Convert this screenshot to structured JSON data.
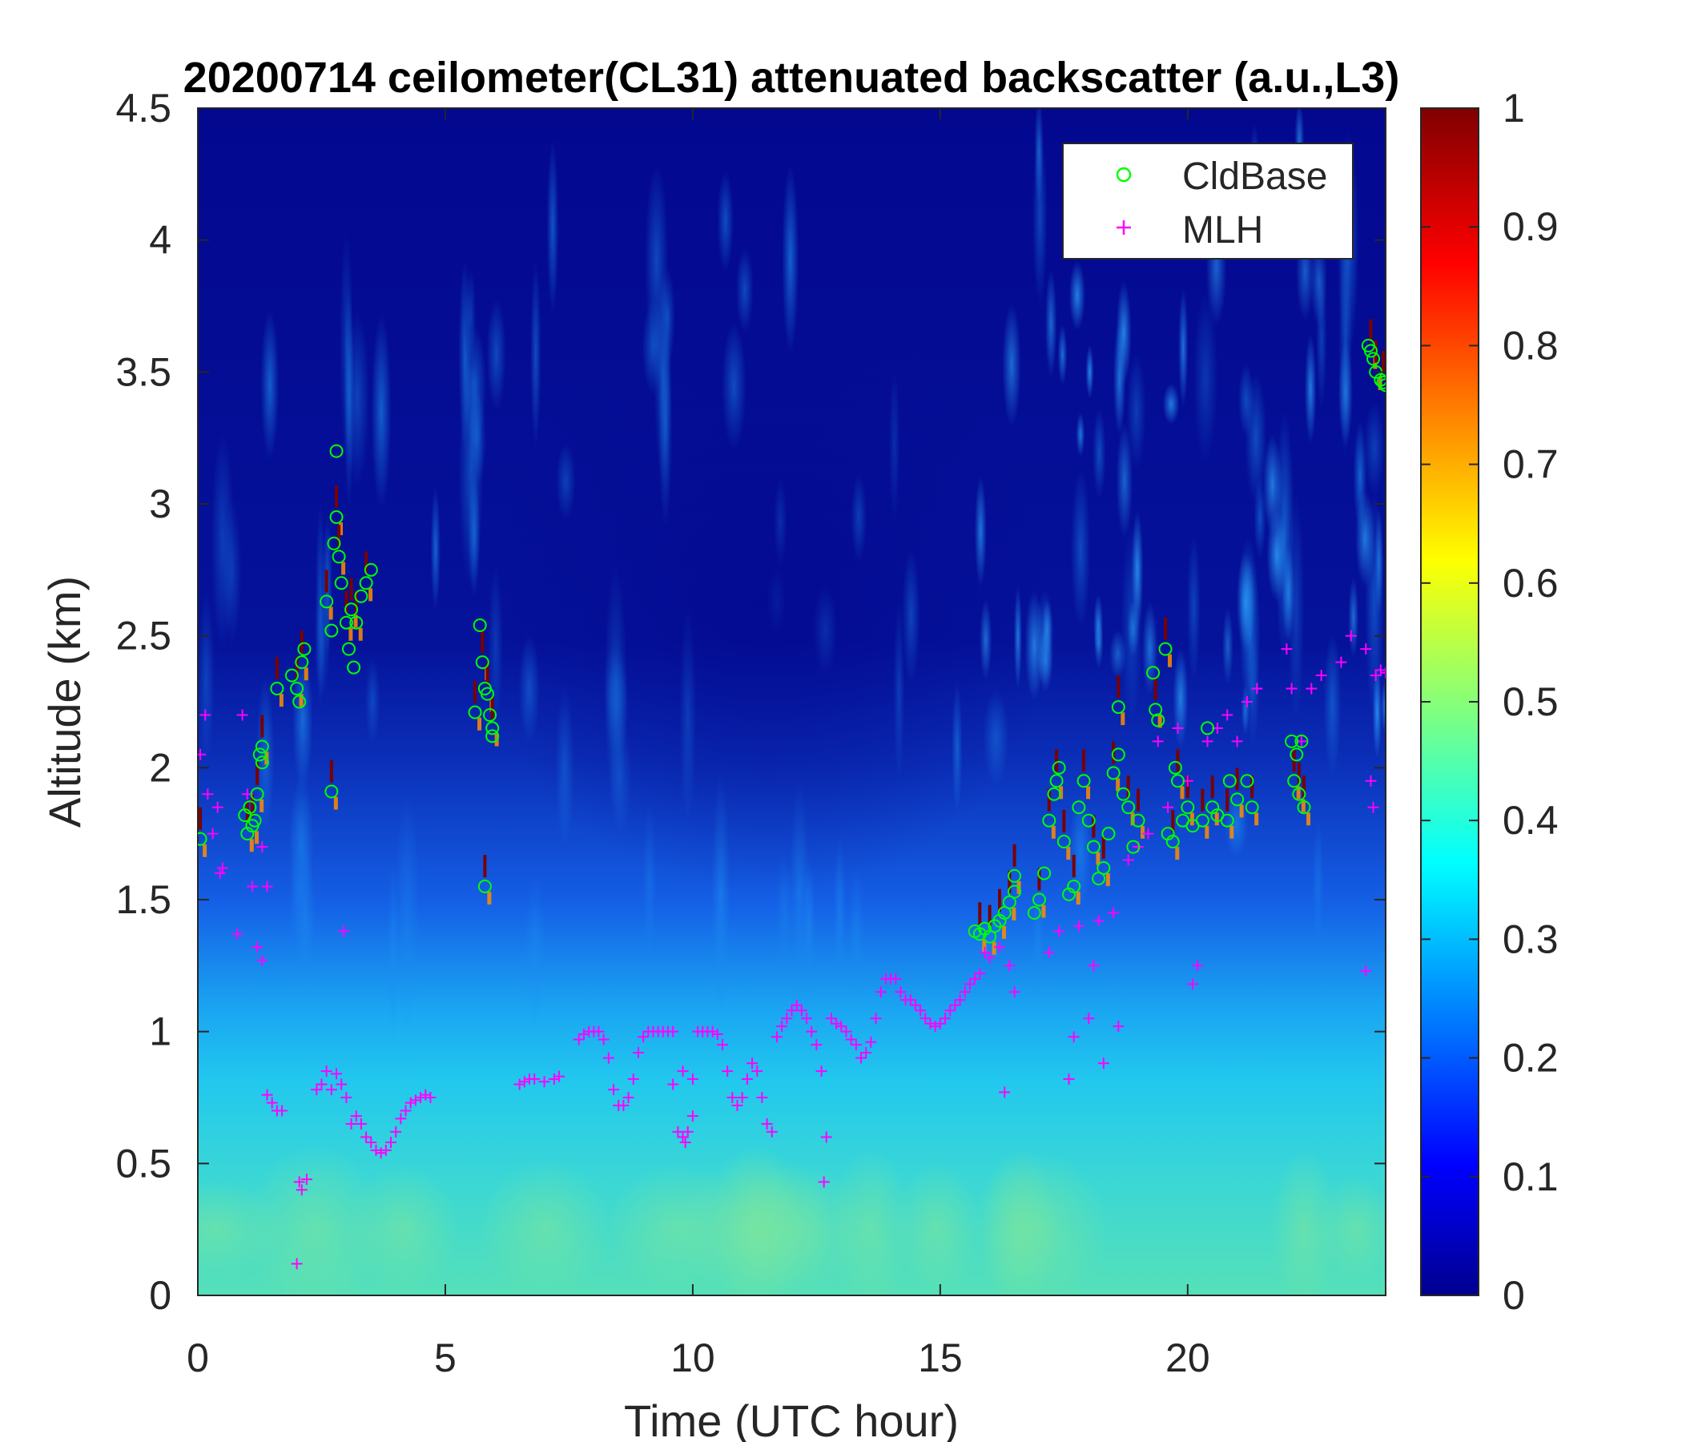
{
  "chart_data": {
    "type": "heatmap",
    "title": "20200714 ceilometer(CL31) attenuated backscatter (a.u.,L3)",
    "xlabel": "Time (UTC hour)",
    "ylabel": "Altitude (km)",
    "xlim": [
      0,
      24
    ],
    "ylim": [
      0,
      4.5
    ],
    "x_ticks": [
      "0",
      "5",
      "10",
      "15",
      "20"
    ],
    "x_tick_values": [
      0,
      5,
      10,
      15,
      20
    ],
    "y_ticks": [
      "0",
      "0.5",
      "1",
      "1.5",
      "2",
      "2.5",
      "3",
      "3.5",
      "4",
      "4.5"
    ],
    "y_tick_values": [
      0,
      0.5,
      1,
      1.5,
      2,
      2.5,
      3,
      3.5,
      4,
      4.5
    ],
    "colorbar": {
      "range": [
        0,
        1
      ],
      "ticks": [
        "0",
        "0.1",
        "0.2",
        "0.3",
        "0.4",
        "0.5",
        "0.6",
        "0.7",
        "0.8",
        "0.9",
        "1"
      ],
      "tick_values": [
        0,
        0.1,
        0.2,
        0.3,
        0.4,
        0.5,
        0.6,
        0.7,
        0.8,
        0.9,
        1.0
      ],
      "colormap": "jet"
    },
    "legend": {
      "placement": "top-right",
      "entries": [
        {
          "label": "CldBase",
          "marker": "circle",
          "color": "#00ff00"
        },
        {
          "label": "MLH",
          "marker": "plus",
          "color": "#ff00ff"
        }
      ]
    },
    "series": [
      {
        "name": "CldBase",
        "marker": "circle",
        "color": "#00ff00",
        "points": [
          [
            0.05,
            1.73
          ],
          [
            0.95,
            1.82
          ],
          [
            1.0,
            1.75
          ],
          [
            1.05,
            1.85
          ],
          [
            1.1,
            1.78
          ],
          [
            1.15,
            1.8
          ],
          [
            1.2,
            1.9
          ],
          [
            1.25,
            2.05
          ],
          [
            1.3,
            2.08
          ],
          [
            1.3,
            2.02
          ],
          [
            1.6,
            2.3
          ],
          [
            1.9,
            2.35
          ],
          [
            2.0,
            2.3
          ],
          [
            2.05,
            2.25
          ],
          [
            2.1,
            2.4
          ],
          [
            2.15,
            2.45
          ],
          [
            2.6,
            2.63
          ],
          [
            2.7,
            2.52
          ],
          [
            2.7,
            1.91
          ],
          [
            2.75,
            2.85
          ],
          [
            2.8,
            2.95
          ],
          [
            2.8,
            3.2
          ],
          [
            2.85,
            2.8
          ],
          [
            2.9,
            2.7
          ],
          [
            3.0,
            2.55
          ],
          [
            3.05,
            2.45
          ],
          [
            3.1,
            2.6
          ],
          [
            3.15,
            2.38
          ],
          [
            3.2,
            2.55
          ],
          [
            3.3,
            2.65
          ],
          [
            3.4,
            2.7
          ],
          [
            3.5,
            2.75
          ],
          [
            5.6,
            2.21
          ],
          [
            5.7,
            2.54
          ],
          [
            5.75,
            2.4
          ],
          [
            5.8,
            2.3
          ],
          [
            5.85,
            2.28
          ],
          [
            5.9,
            2.2
          ],
          [
            5.95,
            2.15
          ],
          [
            5.95,
            2.12
          ],
          [
            5.8,
            1.55
          ],
          [
            15.7,
            1.38
          ],
          [
            15.8,
            1.37
          ],
          [
            15.9,
            1.39
          ],
          [
            16.0,
            1.36
          ],
          [
            16.1,
            1.4
          ],
          [
            16.2,
            1.42
          ],
          [
            16.3,
            1.45
          ],
          [
            16.4,
            1.49
          ],
          [
            16.5,
            1.53
          ],
          [
            16.5,
            1.59
          ],
          [
            16.9,
            1.45
          ],
          [
            17.0,
            1.5
          ],
          [
            17.1,
            1.6
          ],
          [
            17.2,
            1.8
          ],
          [
            17.3,
            1.9
          ],
          [
            17.35,
            1.95
          ],
          [
            17.4,
            2.0
          ],
          [
            17.5,
            1.72
          ],
          [
            17.6,
            1.52
          ],
          [
            17.7,
            1.55
          ],
          [
            17.8,
            1.85
          ],
          [
            17.9,
            1.95
          ],
          [
            18.0,
            1.8
          ],
          [
            18.1,
            1.7
          ],
          [
            18.2,
            1.58
          ],
          [
            18.3,
            1.62
          ],
          [
            18.4,
            1.75
          ],
          [
            18.5,
            1.98
          ],
          [
            18.6,
            2.05
          ],
          [
            18.6,
            2.23
          ],
          [
            18.7,
            1.9
          ],
          [
            18.8,
            1.85
          ],
          [
            18.9,
            1.7
          ],
          [
            19.0,
            1.8
          ],
          [
            19.3,
            2.36
          ],
          [
            19.35,
            2.22
          ],
          [
            19.4,
            2.18
          ],
          [
            19.55,
            2.45
          ],
          [
            19.6,
            1.75
          ],
          [
            19.7,
            1.72
          ],
          [
            19.75,
            2.0
          ],
          [
            19.8,
            1.95
          ],
          [
            19.9,
            1.8
          ],
          [
            20.0,
            1.85
          ],
          [
            20.1,
            1.78
          ],
          [
            20.3,
            1.8
          ],
          [
            20.4,
            2.15
          ],
          [
            20.5,
            1.85
          ],
          [
            20.6,
            1.82
          ],
          [
            20.8,
            1.8
          ],
          [
            20.85,
            1.95
          ],
          [
            21.0,
            1.88
          ],
          [
            21.2,
            1.95
          ],
          [
            21.3,
            1.85
          ],
          [
            22.1,
            2.1
          ],
          [
            22.15,
            1.95
          ],
          [
            22.2,
            2.05
          ],
          [
            22.25,
            1.9
          ],
          [
            22.3,
            2.1
          ],
          [
            22.35,
            1.85
          ],
          [
            23.65,
            3.6
          ],
          [
            23.7,
            3.58
          ],
          [
            23.75,
            3.55
          ],
          [
            23.8,
            3.5
          ],
          [
            23.9,
            3.47
          ],
          [
            23.95,
            3.46
          ],
          [
            24.0,
            3.45
          ]
        ]
      },
      {
        "name": "MLH",
        "marker": "plus",
        "color": "#ff00ff",
        "points": [
          [
            0.05,
            2.05
          ],
          [
            0.15,
            2.2
          ],
          [
            0.2,
            1.9
          ],
          [
            0.3,
            1.75
          ],
          [
            0.4,
            1.85
          ],
          [
            0.45,
            1.6
          ],
          [
            0.5,
            1.62
          ],
          [
            0.8,
            1.37
          ],
          [
            0.9,
            2.2
          ],
          [
            1.0,
            1.9
          ],
          [
            1.1,
            1.55
          ],
          [
            1.2,
            1.32
          ],
          [
            1.3,
            1.27
          ],
          [
            1.3,
            1.7
          ],
          [
            1.4,
            1.55
          ],
          [
            1.4,
            0.76
          ],
          [
            1.5,
            0.73
          ],
          [
            1.6,
            0.7
          ],
          [
            1.7,
            0.7
          ],
          [
            2.0,
            0.12
          ],
          [
            2.05,
            0.43
          ],
          [
            2.1,
            0.4
          ],
          [
            2.2,
            0.44
          ],
          [
            2.4,
            0.78
          ],
          [
            2.5,
            0.8
          ],
          [
            2.6,
            0.85
          ],
          [
            2.7,
            0.78
          ],
          [
            2.8,
            0.84
          ],
          [
            2.9,
            0.8
          ],
          [
            2.95,
            1.38
          ],
          [
            3.0,
            0.75
          ],
          [
            3.1,
            0.65
          ],
          [
            3.2,
            0.68
          ],
          [
            3.3,
            0.65
          ],
          [
            3.4,
            0.6
          ],
          [
            3.5,
            0.58
          ],
          [
            3.6,
            0.55
          ],
          [
            3.7,
            0.54
          ],
          [
            3.8,
            0.55
          ],
          [
            3.9,
            0.58
          ],
          [
            4.0,
            0.62
          ],
          [
            4.1,
            0.67
          ],
          [
            4.2,
            0.7
          ],
          [
            4.3,
            0.73
          ],
          [
            4.4,
            0.74
          ],
          [
            4.5,
            0.75
          ],
          [
            4.6,
            0.76
          ],
          [
            4.7,
            0.75
          ],
          [
            6.5,
            0.8
          ],
          [
            6.6,
            0.81
          ],
          [
            6.7,
            0.82
          ],
          [
            6.8,
            0.82
          ],
          [
            7.0,
            0.81
          ],
          [
            7.2,
            0.82
          ],
          [
            7.3,
            0.83
          ],
          [
            7.7,
            0.97
          ],
          [
            7.8,
            0.99
          ],
          [
            7.9,
            1.0
          ],
          [
            8.0,
            1.0
          ],
          [
            8.1,
            1.0
          ],
          [
            8.2,
            0.97
          ],
          [
            8.3,
            0.9
          ],
          [
            8.4,
            0.78
          ],
          [
            8.5,
            0.72
          ],
          [
            8.6,
            0.72
          ],
          [
            8.7,
            0.75
          ],
          [
            8.8,
            0.82
          ],
          [
            8.9,
            0.92
          ],
          [
            9.0,
            0.98
          ],
          [
            9.1,
            1.0
          ],
          [
            9.2,
            1.0
          ],
          [
            9.3,
            1.0
          ],
          [
            9.4,
            1.0
          ],
          [
            9.5,
            1.0
          ],
          [
            9.6,
            1.0
          ],
          [
            9.7,
            0.62
          ],
          [
            9.8,
            0.6
          ],
          [
            9.85,
            0.58
          ],
          [
            9.9,
            0.62
          ],
          [
            10.0,
            0.68
          ],
          [
            9.6,
            0.8
          ],
          [
            9.8,
            0.85
          ],
          [
            10.0,
            0.82
          ],
          [
            10.1,
            1.0
          ],
          [
            10.2,
            1.0
          ],
          [
            10.3,
            1.0
          ],
          [
            10.4,
            1.0
          ],
          [
            10.5,
            0.99
          ],
          [
            10.6,
            0.95
          ],
          [
            10.7,
            0.85
          ],
          [
            10.8,
            0.75
          ],
          [
            10.9,
            0.72
          ],
          [
            11.0,
            0.75
          ],
          [
            11.1,
            0.82
          ],
          [
            11.2,
            0.88
          ],
          [
            11.3,
            0.85
          ],
          [
            11.4,
            0.75
          ],
          [
            11.5,
            0.65
          ],
          [
            11.6,
            0.62
          ],
          [
            11.7,
            0.98
          ],
          [
            11.8,
            1.02
          ],
          [
            11.9,
            1.05
          ],
          [
            12.0,
            1.08
          ],
          [
            12.1,
            1.1
          ],
          [
            12.2,
            1.08
          ],
          [
            12.3,
            1.05
          ],
          [
            12.4,
            1.0
          ],
          [
            12.5,
            0.95
          ],
          [
            12.6,
            0.85
          ],
          [
            12.65,
            0.43
          ],
          [
            12.7,
            0.6
          ],
          [
            12.8,
            1.05
          ],
          [
            12.9,
            1.03
          ],
          [
            13.0,
            1.02
          ],
          [
            13.1,
            1.0
          ],
          [
            13.2,
            0.97
          ],
          [
            13.3,
            0.95
          ],
          [
            13.4,
            0.9
          ],
          [
            13.5,
            0.92
          ],
          [
            13.6,
            0.96
          ],
          [
            13.7,
            1.05
          ],
          [
            13.8,
            1.15
          ],
          [
            13.9,
            1.2
          ],
          [
            14.0,
            1.2
          ],
          [
            14.1,
            1.2
          ],
          [
            14.2,
            1.15
          ],
          [
            14.3,
            1.12
          ],
          [
            14.4,
            1.12
          ],
          [
            14.5,
            1.1
          ],
          [
            14.6,
            1.08
          ],
          [
            14.7,
            1.05
          ],
          [
            14.8,
            1.03
          ],
          [
            14.9,
            1.02
          ],
          [
            15.0,
            1.03
          ],
          [
            15.1,
            1.05
          ],
          [
            15.2,
            1.08
          ],
          [
            15.3,
            1.1
          ],
          [
            15.4,
            1.12
          ],
          [
            15.5,
            1.15
          ],
          [
            15.6,
            1.18
          ],
          [
            15.7,
            1.2
          ],
          [
            15.8,
            1.22
          ],
          [
            15.9,
            1.3
          ],
          [
            16.0,
            1.28
          ],
          [
            16.2,
            1.32
          ],
          [
            16.3,
            0.77
          ],
          [
            16.4,
            1.25
          ],
          [
            16.5,
            1.15
          ],
          [
            17.2,
            1.3
          ],
          [
            17.4,
            1.38
          ],
          [
            17.6,
            0.82
          ],
          [
            17.7,
            0.98
          ],
          [
            17.8,
            1.4
          ],
          [
            18.0,
            1.05
          ],
          [
            18.1,
            1.25
          ],
          [
            18.2,
            1.42
          ],
          [
            18.3,
            0.88
          ],
          [
            18.5,
            1.45
          ],
          [
            18.6,
            1.02
          ],
          [
            18.8,
            1.65
          ],
          [
            19.0,
            1.7
          ],
          [
            19.2,
            1.75
          ],
          [
            19.4,
            2.1
          ],
          [
            19.6,
            1.85
          ],
          [
            19.8,
            2.15
          ],
          [
            20.0,
            1.95
          ],
          [
            20.1,
            1.18
          ],
          [
            20.2,
            1.25
          ],
          [
            20.4,
            2.1
          ],
          [
            20.6,
            2.15
          ],
          [
            20.8,
            2.2
          ],
          [
            21.0,
            2.1
          ],
          [
            21.2,
            2.25
          ],
          [
            21.4,
            2.3
          ],
          [
            22.0,
            2.45
          ],
          [
            22.1,
            2.3
          ],
          [
            22.3,
            2.1
          ],
          [
            22.5,
            2.3
          ],
          [
            22.7,
            2.35
          ],
          [
            23.1,
            2.4
          ],
          [
            23.3,
            2.5
          ],
          [
            23.6,
            2.45
          ],
          [
            23.6,
            1.23
          ],
          [
            23.7,
            1.95
          ],
          [
            23.75,
            1.85
          ],
          [
            23.8,
            2.35
          ],
          [
            23.9,
            2.37
          ],
          [
            24.0,
            2.36
          ]
        ]
      }
    ]
  }
}
